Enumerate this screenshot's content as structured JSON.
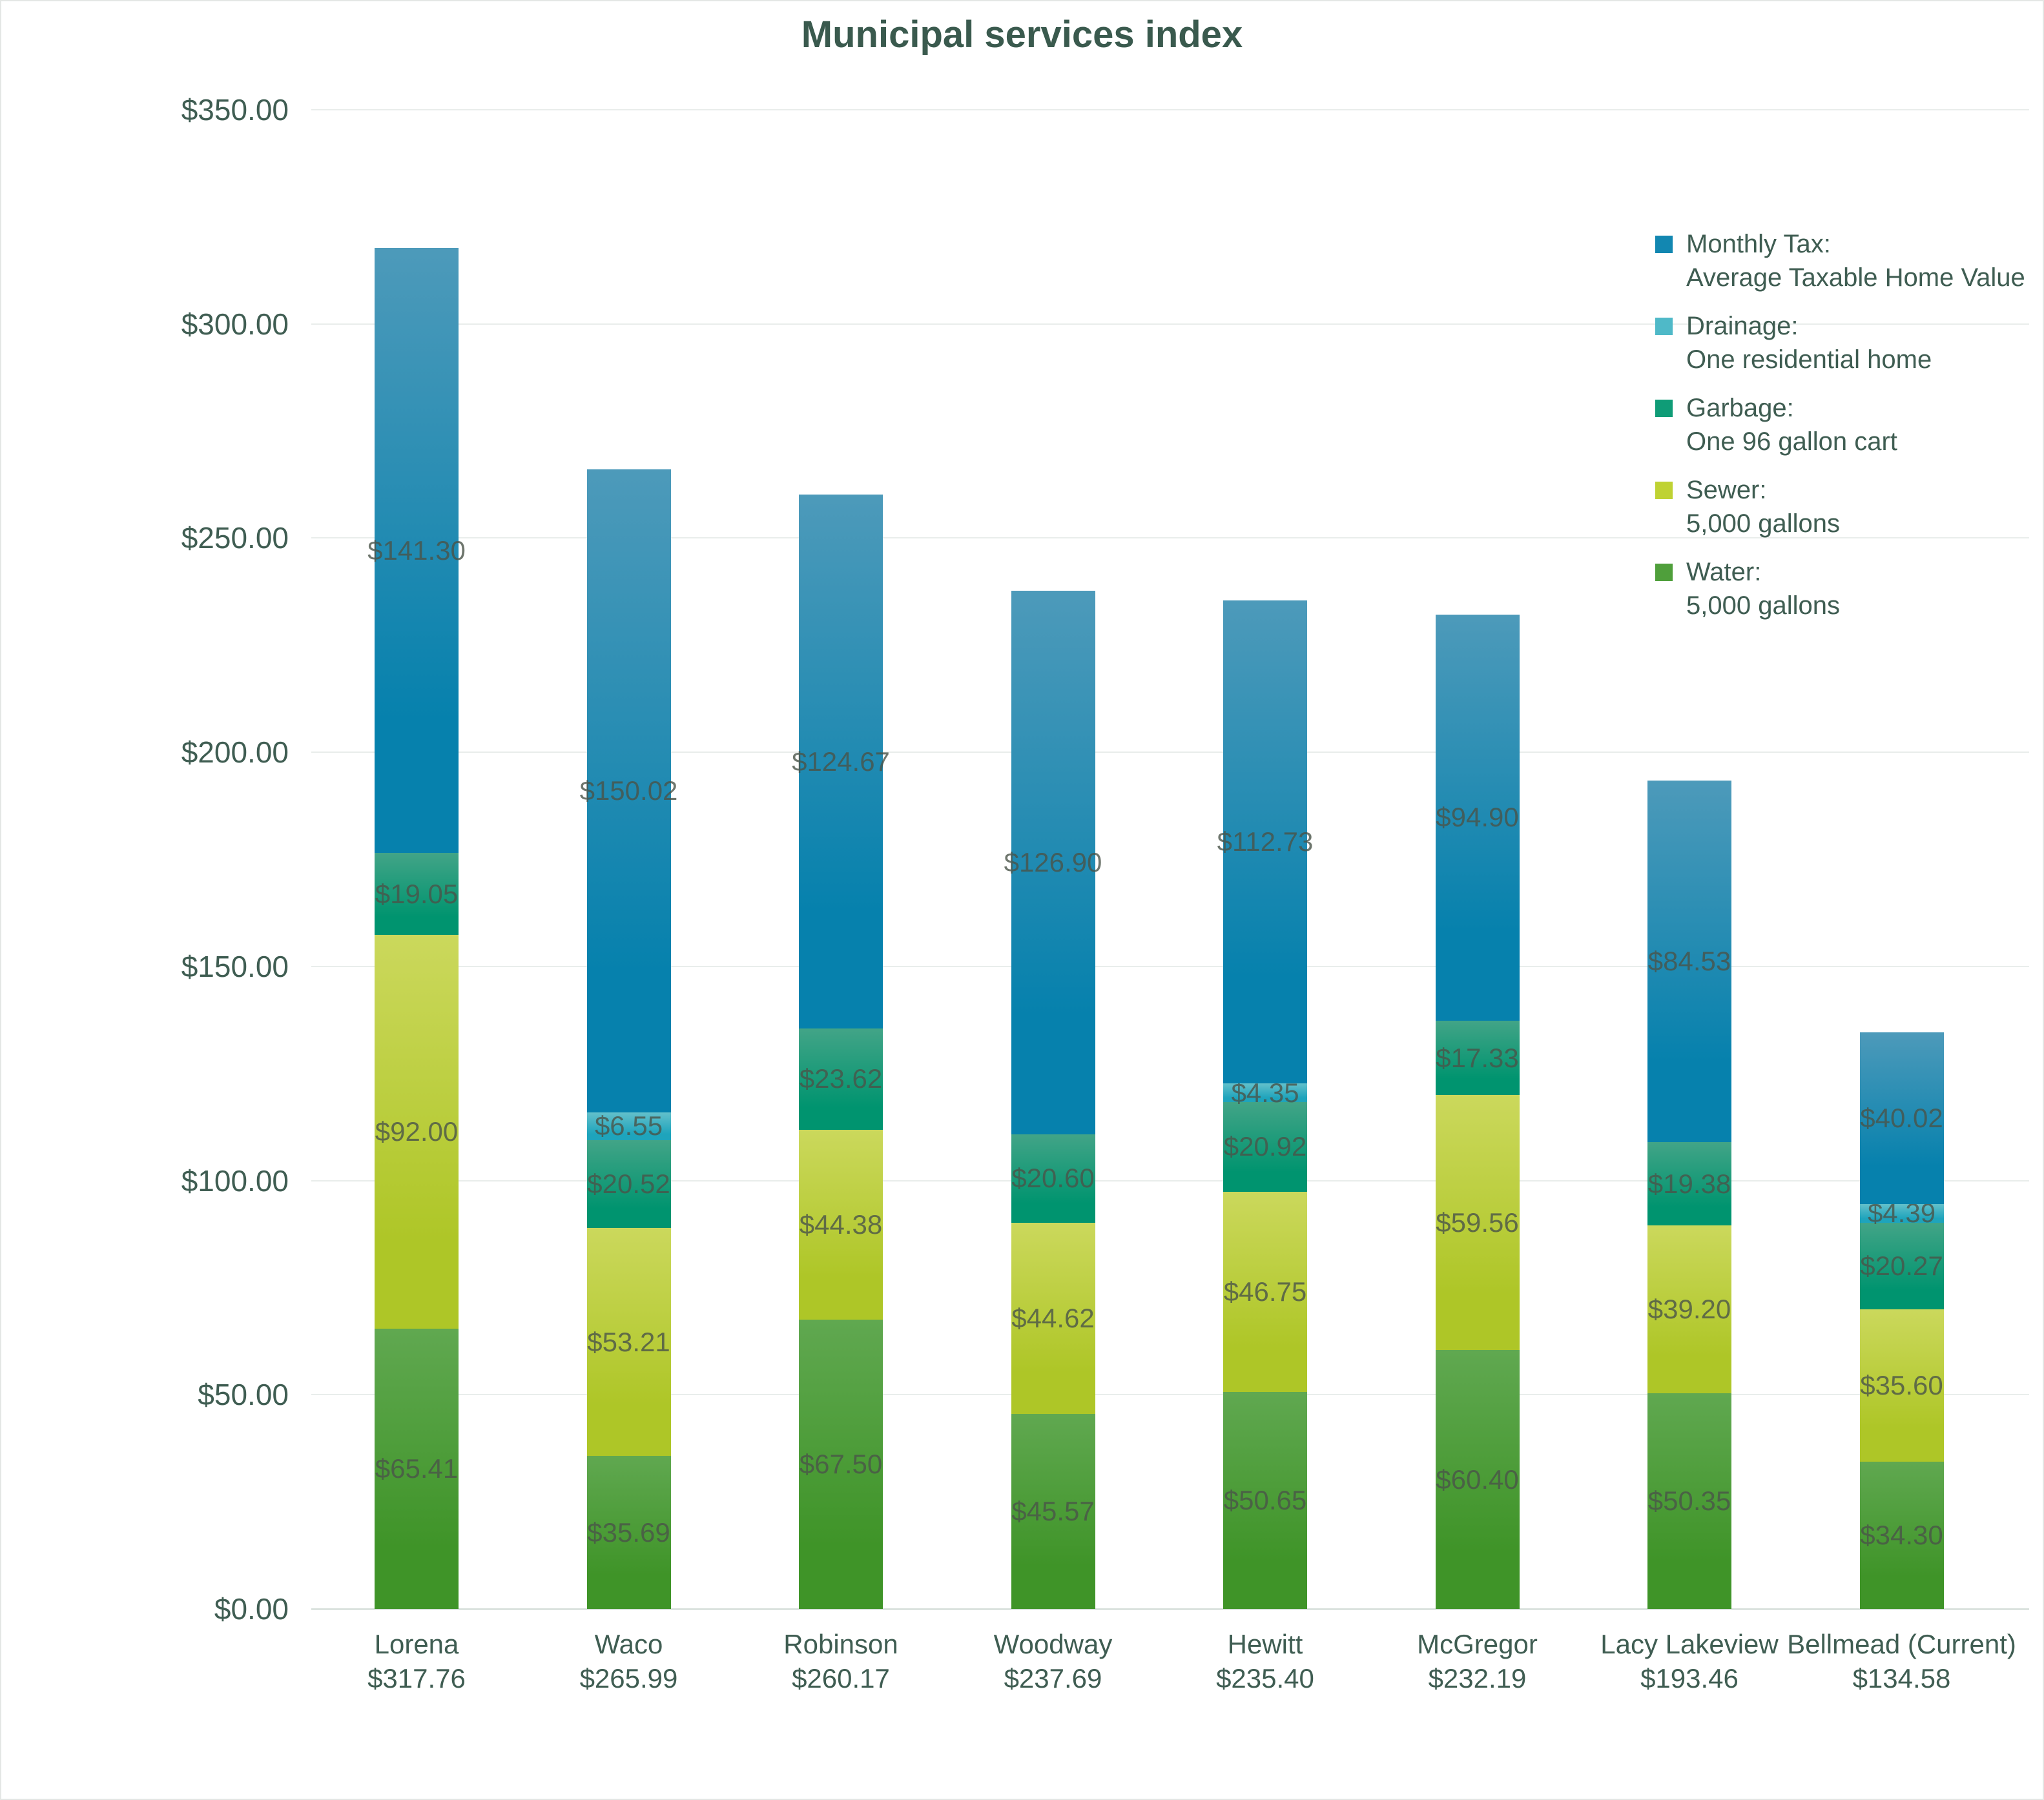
{
  "page": {
    "background": "#ffffff",
    "border_color": "#e4e7e5"
  },
  "chart_data": {
    "type": "bar",
    "stacked": true,
    "title": "Municipal services index",
    "title_color": "#3a5a4e",
    "axis_text_color": "#3f5d52",
    "segment_label_color": "#4a5449",
    "gridline_color": "#e9edeb",
    "baseline_color": "#dbe3df",
    "grid": true,
    "legend_position": "right",
    "ylim": [
      0,
      350
    ],
    "yticks": [
      {
        "value": 350,
        "label": "$350.00"
      },
      {
        "value": 300,
        "label": "$300.00"
      },
      {
        "value": 250,
        "label": "$250.00"
      },
      {
        "value": 200,
        "label": "$200.00"
      },
      {
        "value": 150,
        "label": "$150.00"
      },
      {
        "value": 100,
        "label": "$100.00"
      },
      {
        "value": 50,
        "label": "$50.00"
      },
      {
        "value": 0,
        "label": "$0.00"
      }
    ],
    "categories": [
      {
        "name": "Lorena",
        "total": "$317.76"
      },
      {
        "name": "Waco",
        "total": "$265.99"
      },
      {
        "name": "Robinson",
        "total": "$260.17"
      },
      {
        "name": "Woodway",
        "total": "$237.69"
      },
      {
        "name": "Hewitt",
        "total": "$235.40"
      },
      {
        "name": "McGregor",
        "total": "$232.19"
      },
      {
        "name": "Lacy Lakeview",
        "total": "$193.46"
      },
      {
        "name": "Bellmead (Current)",
        "total": "$134.58"
      }
    ],
    "series": [
      {
        "name": "Water:",
        "desc": "5,000 gallons",
        "color_top": "#60a850",
        "color_bottom": "#3f9428",
        "legend_color": "#4f9f3b",
        "values": [
          65.41,
          35.69,
          67.5,
          45.57,
          50.65,
          60.4,
          50.35,
          34.3
        ],
        "labels": [
          "$65.41",
          "$35.69",
          "$67.50",
          "$45.57",
          "$50.65",
          "$60.40",
          "$50.35",
          "$34.30"
        ]
      },
      {
        "name": "Sewer:",
        "desc": "5,000 gallons",
        "color_top": "#cbd85c",
        "color_bottom": "#aec627",
        "legend_color": "#bfd233",
        "values": [
          92.0,
          53.21,
          44.38,
          44.62,
          46.75,
          59.56,
          39.2,
          35.6
        ],
        "labels": [
          "$92.00",
          "$53.21",
          "$44.38",
          "$44.62",
          "$46.75",
          "$59.56",
          "$39.20",
          "$35.60"
        ]
      },
      {
        "name": "Garbage:",
        "desc": "One 96 gallon cart",
        "color_top": "#42a487",
        "color_bottom": "#00946f",
        "legend_color": "#0f9c77",
        "values": [
          19.05,
          20.52,
          23.62,
          20.6,
          20.92,
          17.33,
          19.38,
          20.27
        ],
        "labels": [
          "$19.05",
          "$20.52",
          "$23.62",
          "$20.60",
          "$20.92",
          "$17.33",
          "$19.38",
          "$20.27"
        ]
      },
      {
        "name": "Drainage:",
        "desc": "One residential home",
        "color_top": "#63c0cb",
        "color_bottom": "#1ea4bc",
        "legend_color": "#4fb9c8",
        "values": [
          0,
          6.55,
          0,
          0,
          4.35,
          0,
          0,
          4.39
        ],
        "labels": [
          null,
          "$6.55",
          null,
          null,
          "$4.35",
          null,
          null,
          "$4.39"
        ]
      },
      {
        "name": "Monthly Tax:",
        "desc": "Average Taxable Home Value",
        "color_top": "#4d9aba",
        "color_bottom": "#0681ad",
        "legend_color": "#1287b1",
        "values": [
          141.3,
          150.02,
          124.67,
          126.9,
          112.73,
          94.9,
          84.53,
          40.02
        ],
        "labels": [
          "$141.30",
          "$150.02",
          "$124.67",
          "$126.90",
          "$112.73",
          "$94.90",
          "$84.53",
          "$40.02"
        ]
      }
    ]
  }
}
